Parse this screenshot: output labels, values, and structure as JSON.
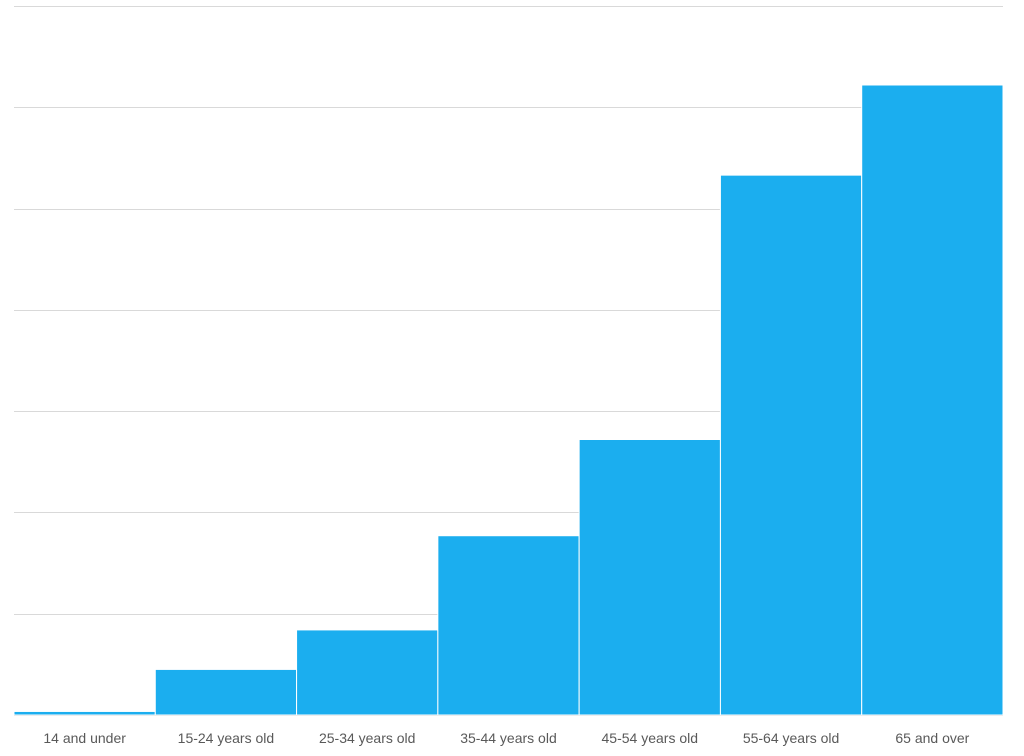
{
  "chart_data": {
    "type": "bar",
    "categories": [
      "14 and under",
      "15-24 years old",
      "25-34 years old",
      "35-44 years old",
      "45-54 years old",
      "55-64 years old",
      "65 and over"
    ],
    "values": [
      0.35,
      4.5,
      8.4,
      17.7,
      27.2,
      53.3,
      62.2
    ],
    "ylim": [
      0,
      70
    ],
    "grid": true,
    "gridlines_every": 10,
    "legend": "none",
    "title": "",
    "xlabel": "",
    "ylabel": "",
    "colors": {
      "bar": "#1BAEEF",
      "bar_edge": "#ffffff",
      "grid": "#D9D9D9",
      "axis": "#D9D9D9",
      "label": "#595959"
    }
  }
}
